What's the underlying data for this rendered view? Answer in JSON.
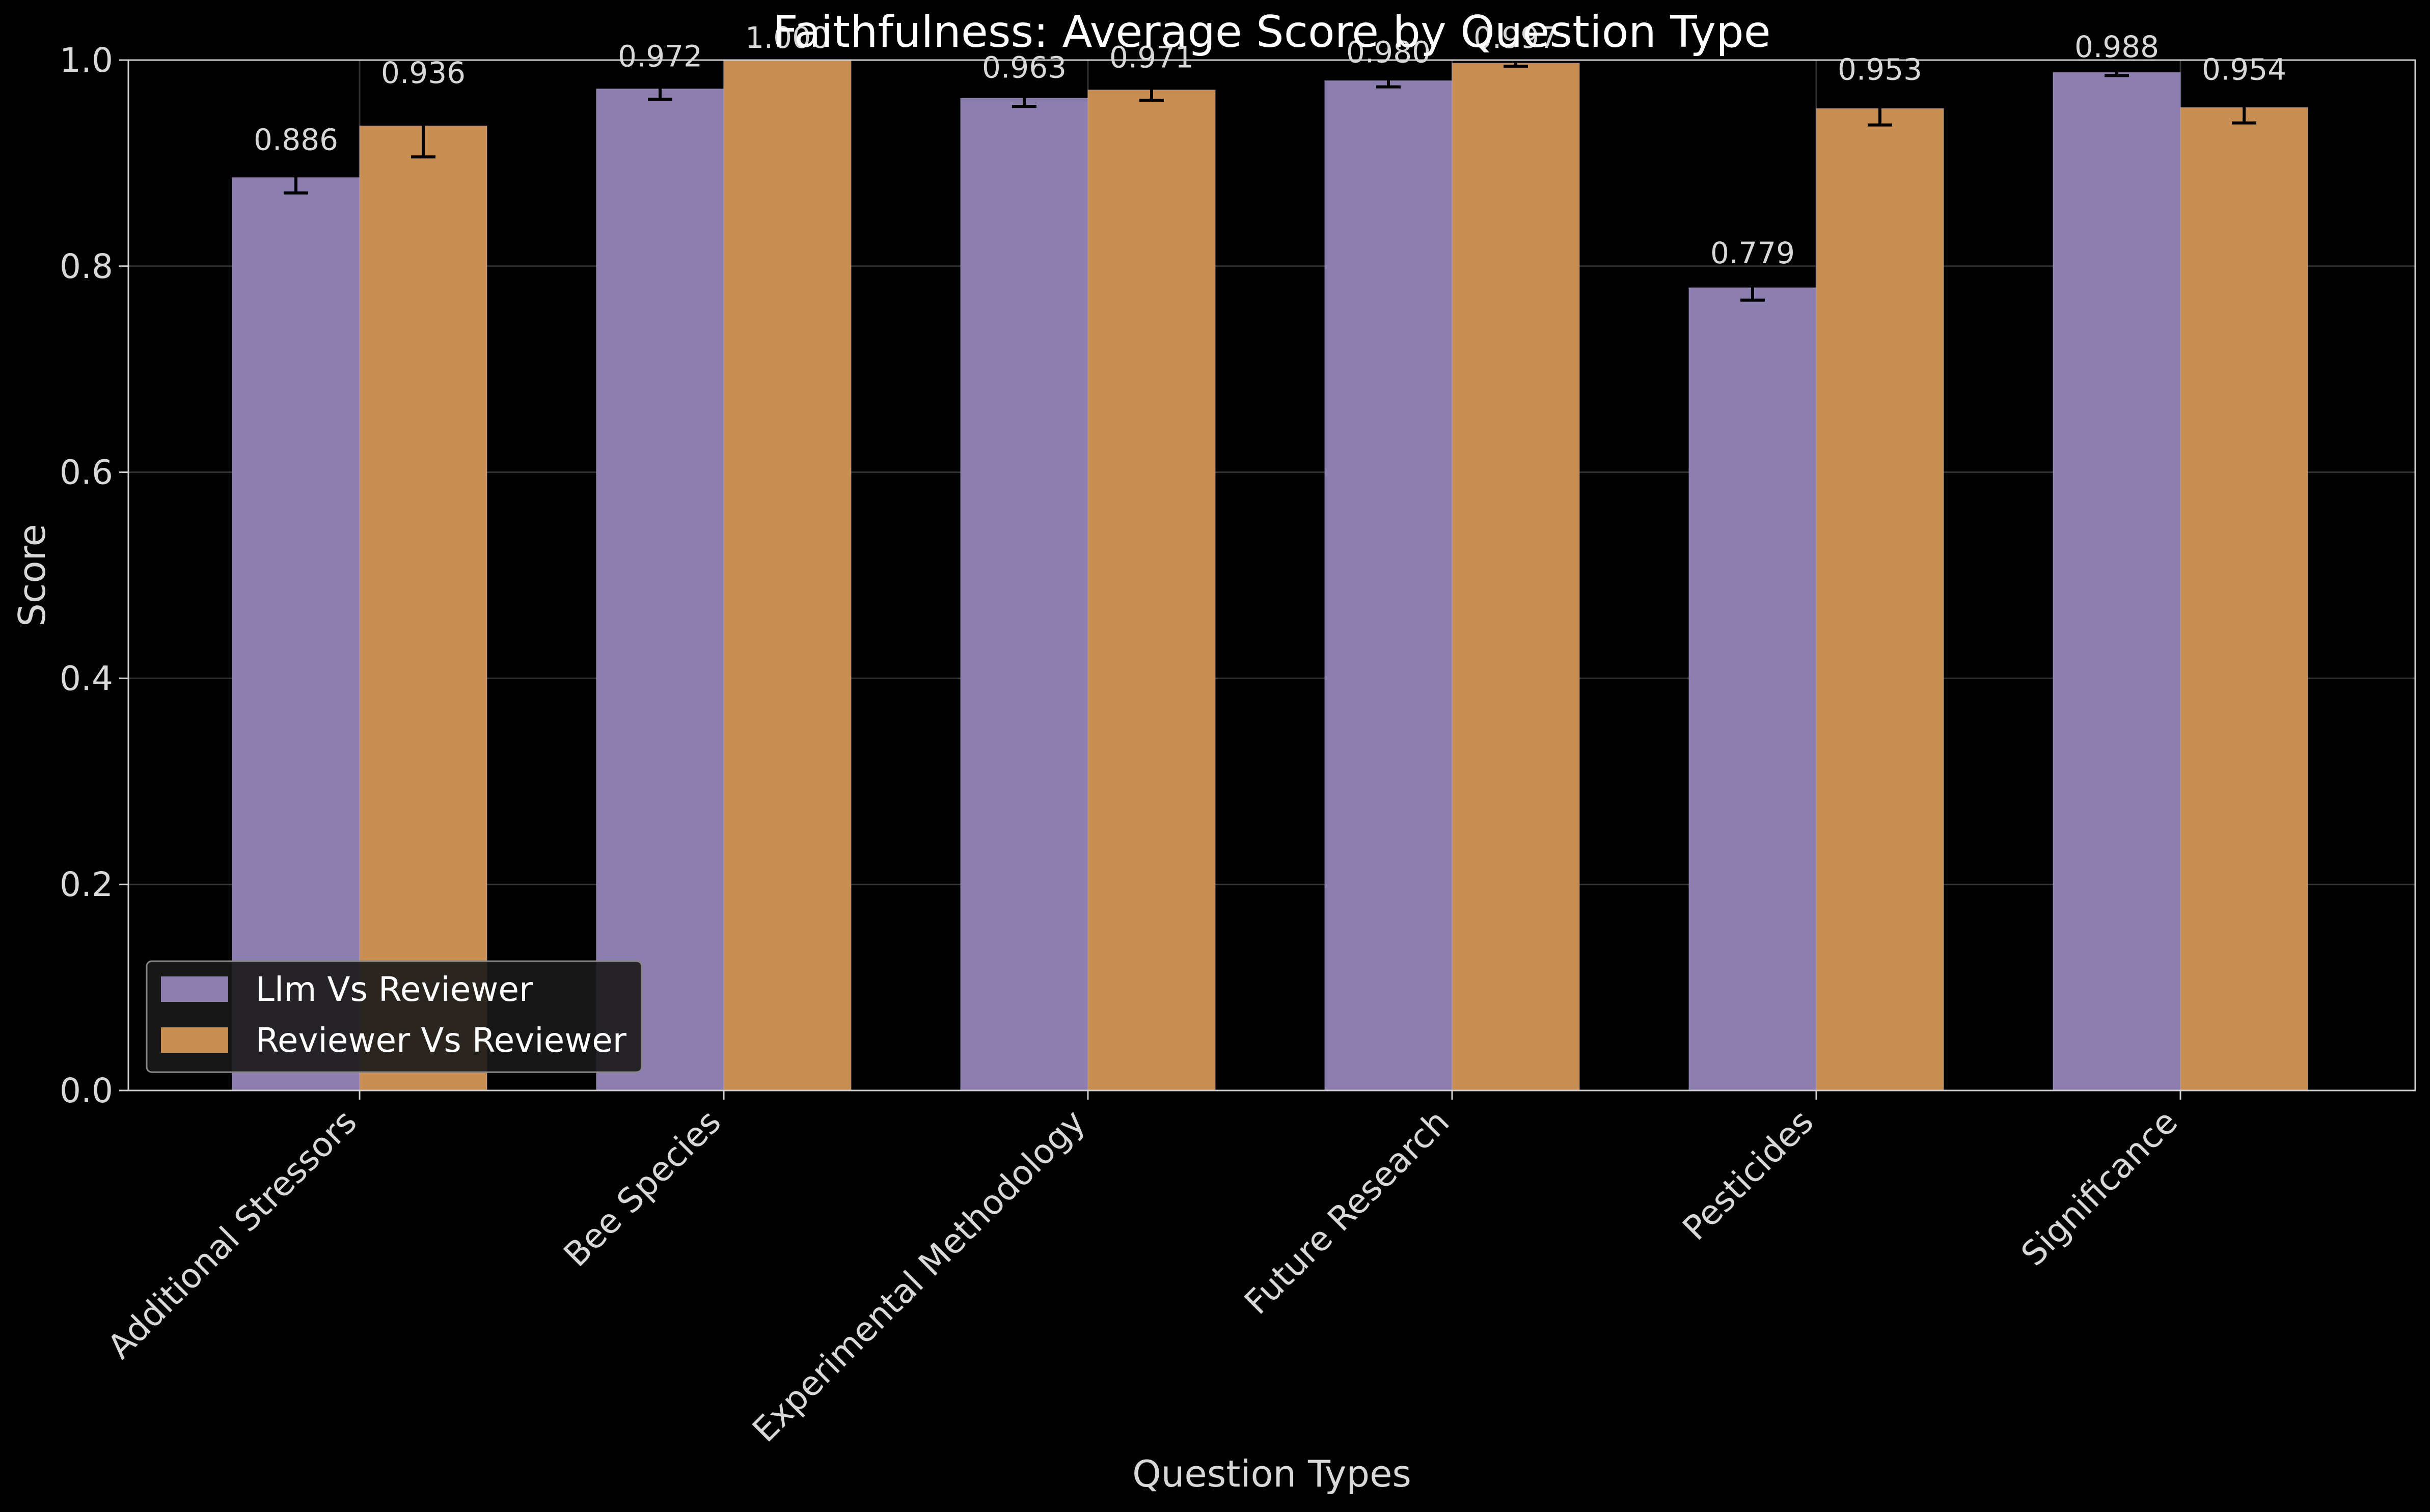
{
  "chart_data": {
    "type": "bar",
    "title": "Faithfulness: Average Score by Question Type",
    "xlabel": "Question Types",
    "ylabel": "Score",
    "ylim": [
      0,
      1.0
    ],
    "yticks": [
      "0.0",
      "0.2",
      "0.4",
      "0.6",
      "0.8",
      "1.0"
    ],
    "categories": [
      "Additional Stressors",
      "Bee Species",
      "Experimental Methodology",
      "Future Research",
      "Pesticides",
      "Significance"
    ],
    "series": [
      {
        "name": "Llm Vs Reviewer",
        "color": "#8d7eb0",
        "values": [
          0.886,
          0.972,
          0.963,
          0.98,
          0.779,
          0.988
        ],
        "labels": [
          "0.886",
          "0.972",
          "0.963",
          "0.980",
          "0.779",
          "0.988"
        ],
        "errors": [
          0.015,
          0.01,
          0.008,
          0.006,
          0.012,
          0.003
        ]
      },
      {
        "name": "Reviewer Vs Reviewer",
        "color": "#c98f52",
        "values": [
          0.936,
          1.0,
          0.971,
          0.997,
          0.953,
          0.954
        ],
        "labels": [
          "0.936",
          "1.000",
          "0.971",
          "0.997",
          "0.953",
          "0.954"
        ],
        "errors": [
          0.03,
          0.0,
          0.01,
          0.003,
          0.016,
          0.015
        ]
      }
    ],
    "grid": true,
    "legend_position": "lower-left",
    "colors": {
      "background": "#000000",
      "axes": "#d0d0d0",
      "grid": "#333333",
      "error_bar": "#000000"
    }
  }
}
